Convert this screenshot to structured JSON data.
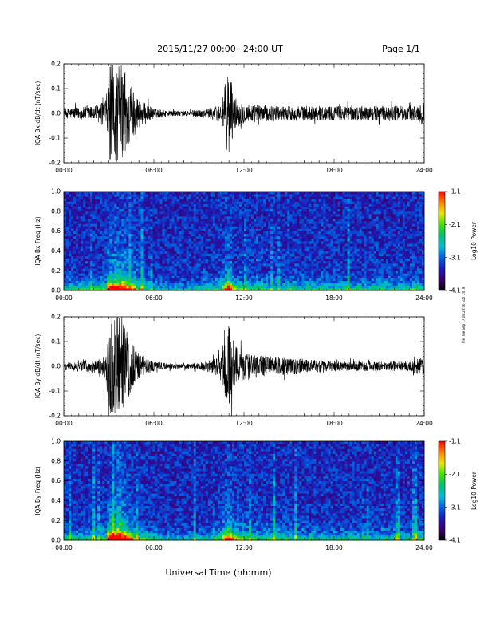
{
  "header": {
    "title": "2015/11/27  00:00−24:00 UT",
    "page": "Page 1/1"
  },
  "footer": {
    "xlabel": "Universal Time (hh:mm)",
    "side_stamp": "mei Tue Sep 17 09:28:46 EDT 2019"
  },
  "colors": {
    "trace": "#000000",
    "colormap": [
      "#000000",
      "#3a006e",
      "#1d1bb8",
      "#0060e0",
      "#00bcd8",
      "#00c070",
      "#40e000",
      "#e8e800",
      "#ff8000",
      "#ff0000"
    ]
  },
  "chart_data": [
    {
      "type": "line",
      "ylabel": "IQA Bx dB/dt (nT/sec)",
      "x_range": [
        "00:00",
        "24:00"
      ],
      "xticks": [
        "00:00",
        "06:00",
        "12:00",
        "18:00",
        "24:00"
      ],
      "ylim": [
        -0.2,
        0.2
      ],
      "yticks": [
        "-0.2",
        "-0.1",
        "0.0",
        "0.1",
        "0.2"
      ],
      "series": [
        {
          "x_hours": [
            0,
            1,
            2,
            2.8,
            3,
            3.5,
            4,
            4.5,
            5,
            6,
            7,
            8,
            9,
            10,
            10.5,
            11,
            11.3,
            12,
            13,
            14,
            15,
            16,
            17,
            18,
            19,
            20,
            21,
            22,
            23,
            24
          ],
          "amplitude": [
            0.02,
            0.025,
            0.03,
            0.05,
            0.2,
            0.2,
            0.2,
            0.12,
            0.06,
            0.02,
            0.012,
            0.01,
            0.015,
            0.025,
            0.04,
            0.2,
            0.07,
            0.04,
            0.035,
            0.03,
            0.03,
            0.03,
            0.03,
            0.03,
            0.03,
            0.03,
            0.03,
            0.03,
            0.03,
            0.045
          ]
        }
      ]
    },
    {
      "type": "heatmap",
      "ylabel": "IQA Bx Freq (Hz)",
      "x_range": [
        "00:00",
        "24:00"
      ],
      "xticks": [
        "00:00",
        "06:00",
        "12:00",
        "18:00",
        "24:00"
      ],
      "ylim": [
        0,
        1.0
      ],
      "yticks": [
        "0.0",
        "0.2",
        "0.4",
        "0.6",
        "0.8",
        "1.0"
      ],
      "colorbar": {
        "label": "Log10 Power",
        "ticks": [
          "-1.1",
          "-2.1",
          "-3.1",
          "-4.1"
        ],
        "range": [
          -4.1,
          -1.1
        ]
      }
    },
    {
      "type": "line",
      "ylabel": "IQA By dB/dt (nT/sec)",
      "x_range": [
        "00:00",
        "24:00"
      ],
      "xticks": [
        "00:00",
        "06:00",
        "12:00",
        "18:00",
        "24:00"
      ],
      "ylim": [
        -0.2,
        0.2
      ],
      "yticks": [
        "-0.2",
        "-0.1",
        "0.0",
        "0.1",
        "0.2"
      ],
      "series": [
        {
          "x_hours": [
            0,
            1,
            2,
            2.8,
            3,
            3.5,
            4,
            4.5,
            5,
            6,
            7,
            8,
            9,
            10,
            10.5,
            11,
            11.3,
            12,
            13,
            14,
            15,
            16,
            17,
            18,
            19,
            20,
            21,
            22,
            23,
            24
          ],
          "amplitude": [
            0.015,
            0.02,
            0.025,
            0.04,
            0.2,
            0.2,
            0.2,
            0.1,
            0.05,
            0.02,
            0.012,
            0.01,
            0.015,
            0.03,
            0.06,
            0.2,
            0.09,
            0.06,
            0.045,
            0.04,
            0.035,
            0.03,
            0.025,
            0.02,
            0.02,
            0.02,
            0.02,
            0.02,
            0.02,
            0.04
          ]
        }
      ]
    },
    {
      "type": "heatmap",
      "ylabel": "IQA By Freq (Hz)",
      "x_range": [
        "00:00",
        "24:00"
      ],
      "xticks": [
        "00:00",
        "06:00",
        "12:00",
        "18:00",
        "24:00"
      ],
      "ylim": [
        0,
        1.0
      ],
      "yticks": [
        "0.0",
        "0.2",
        "0.4",
        "0.6",
        "0.8",
        "1.0"
      ],
      "colorbar": {
        "label": "Log10 Power",
        "ticks": [
          "-1.1",
          "-2.1",
          "-3.1",
          "-4.1"
        ],
        "range": [
          -4.1,
          -1.1
        ]
      }
    }
  ]
}
